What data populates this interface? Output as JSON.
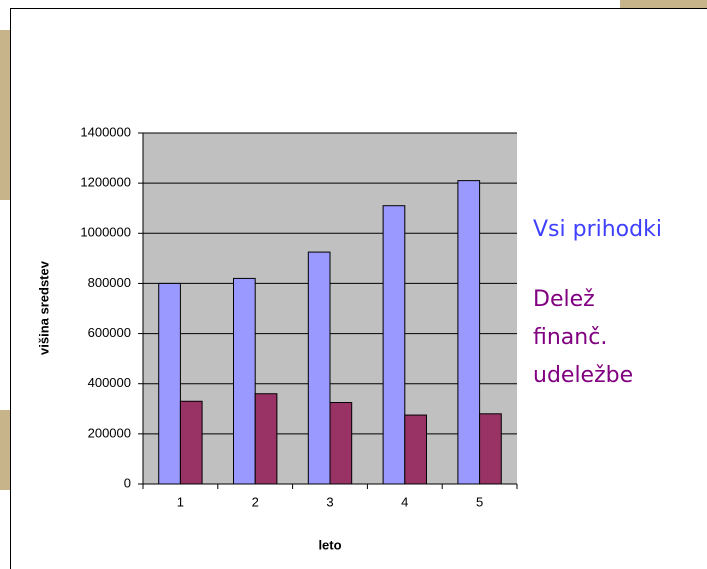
{
  "chart_data": {
    "type": "bar",
    "categories": [
      "1",
      "2",
      "3",
      "4",
      "5"
    ],
    "series": [
      {
        "name": "Vsi prihodki",
        "color": "#9999ff",
        "values": [
          800000,
          820000,
          925000,
          1110000,
          1210000
        ]
      },
      {
        "name": "Delež finanč. udeležbe",
        "color": "#993366",
        "values": [
          330000,
          360000,
          325000,
          275000,
          280000
        ]
      }
    ],
    "ylim": [
      0,
      1400000
    ],
    "yticks": [
      0,
      200000,
      400000,
      600000,
      800000,
      1000000,
      1200000,
      1400000
    ],
    "grid": true,
    "xlabel": "leto",
    "ylabel": "višina sredstev",
    "legend": "right",
    "legend_colors": [
      "#3f3fff",
      "#800080"
    ]
  }
}
